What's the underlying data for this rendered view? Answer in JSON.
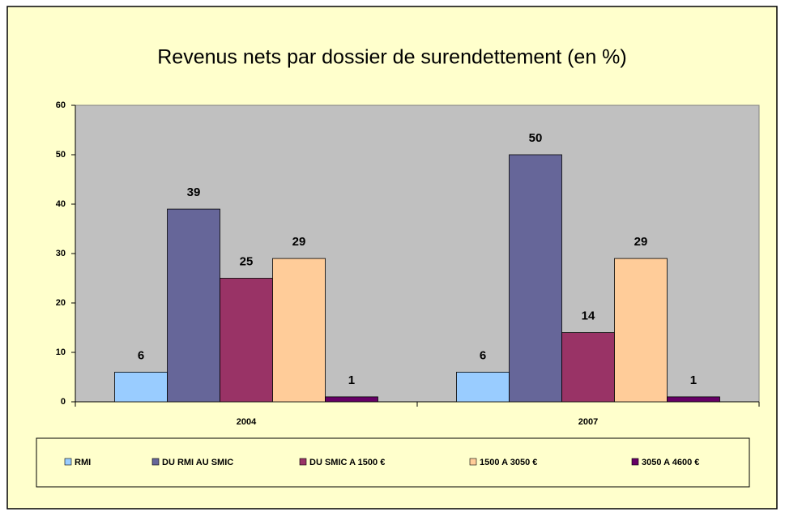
{
  "chart_data": {
    "type": "bar",
    "title": "Revenus nets par dossier de surendettement (en %)",
    "categories": [
      "2004",
      "2007"
    ],
    "series": [
      {
        "name": "RMI",
        "color": "#99ccff",
        "values": [
          6,
          6
        ]
      },
      {
        "name": "DU RMI AU SMIC",
        "color": "#666699",
        "values": [
          39,
          50
        ]
      },
      {
        "name": "DU SMIC A 1500 €",
        "color": "#993366",
        "values": [
          25,
          14
        ]
      },
      {
        "name": "1500 A 3050 €",
        "color": "#ffcc99",
        "values": [
          29,
          29
        ]
      },
      {
        "name": "3050 A 4600 €",
        "color": "#660066",
        "values": [
          1,
          1
        ]
      }
    ],
    "ylim": [
      0,
      60
    ],
    "yticks": [
      0,
      10,
      20,
      30,
      40,
      50,
      60
    ],
    "grid": false,
    "legend": "bottom"
  }
}
